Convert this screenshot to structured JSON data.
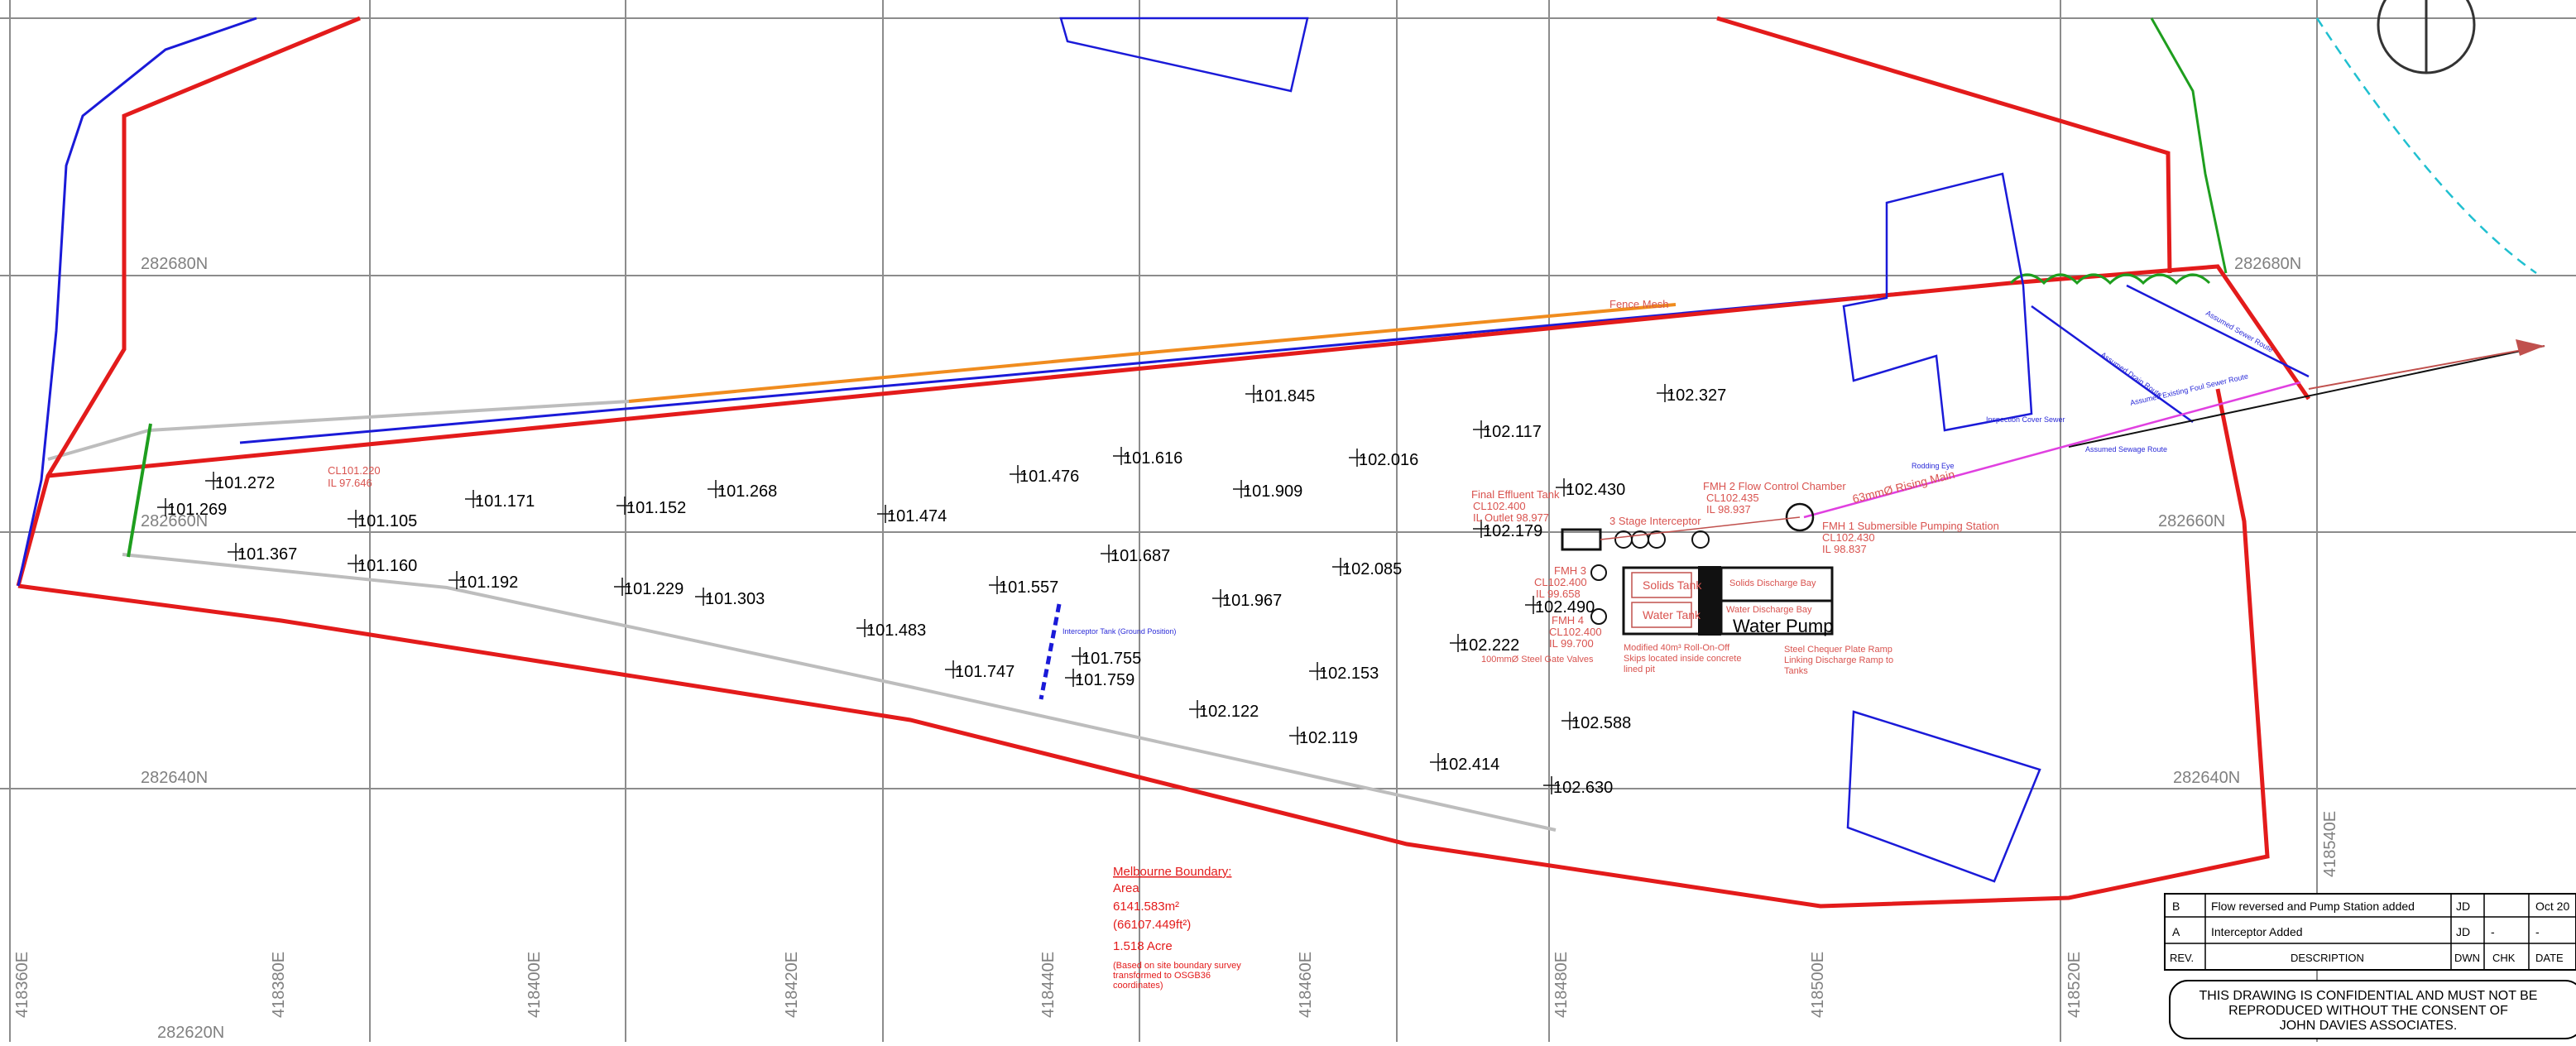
{
  "grid": {
    "northings": [
      "282680N",
      "282660N",
      "282640N",
      "282620N"
    ],
    "eastings": [
      "418360E",
      "418380E",
      "418400E",
      "418420E",
      "418440E",
      "418460E",
      "418480E",
      "418500E",
      "418520E",
      "418540E"
    ]
  },
  "levels": [
    "101.272",
    "101.269",
    "101.105",
    "101.171",
    "101.152",
    "101.268",
    "101.474",
    "101.476",
    "101.616",
    "101.845",
    "101.909",
    "102.016",
    "102.117",
    "102.327",
    "101.367",
    "101.160",
    "101.192",
    "101.229",
    "101.303",
    "101.557",
    "101.687",
    "101.967",
    "102.085",
    "102.179",
    "102.430",
    "101.483",
    "101.747",
    "101.755",
    "101.759",
    "102.122",
    "102.119",
    "102.153",
    "102.222",
    "102.414",
    "102.490",
    "102.588",
    "102.630"
  ],
  "annotations": {
    "cl_note_1": "CL101.220",
    "cl_note_2": "IL 97.646",
    "final_effluent": [
      "Final Effluent Tank",
      "CL102.400",
      "IL Outlet 98.977"
    ],
    "fmh2": [
      "FMH 2 Flow Control Chamber",
      "CL102.435",
      "IL 98.937"
    ],
    "interceptor": "3 Stage Interceptor",
    "fmh1": [
      "FMH 1 Submersible Pumping Station",
      "CL102.430",
      "IL 98.837"
    ],
    "fmh3": [
      "FMH 3",
      "CL102.400",
      "IL 99.658"
    ],
    "fmh4": [
      "FMH 4",
      "CL102.400",
      "IL 99.700"
    ],
    "rising_main": "63mmØ Rising Main",
    "solids_tank": "Solids Tank",
    "water_tank": "Water Tank",
    "solids_bay": "Solids Discharge Bay",
    "water_bay": "Water Discharge Bay",
    "water_pump": "Water Pump",
    "skips": [
      "Modified 40m³ Roll-On-Off",
      "Skips located inside concrete",
      "lined pit"
    ],
    "valves": "100mmØ Steel Gate Valves",
    "ramp": [
      "Steel Chequer Plate Ramp",
      "Linking Discharge Ramp to",
      "Tanks"
    ],
    "interceptor_tank": "Interceptor Tank (Ground Position)",
    "fence_mesh": "Fence Mesh",
    "route_1": "Assumed Existing Foul Sewer Route",
    "route_2": "Assumed Sewage Route",
    "route_3": "Assumed Drain Route",
    "route_4": "Assumed Sewer Route",
    "route_5": "Inspection Cover Sewer",
    "route_6": "Rodding Eye"
  },
  "boundary": {
    "title": "Melbourne Boundary:",
    "area_label": "Area",
    "area_m2": "6141.583m²",
    "area_ft2": "(66107.449ft²)",
    "acres": "1.518 Acre",
    "note": [
      "(Based on site boundary survey",
      "transformed to OSGB36",
      "coordinates)"
    ]
  },
  "revisions": {
    "rows": [
      {
        "rev": "B",
        "description": "Flow reversed and Pump Station added",
        "dwn": "JD",
        "chk": "",
        "date": "Oct 20"
      },
      {
        "rev": "A",
        "description": "Interceptor Added",
        "dwn": "JD",
        "chk": "-",
        "date": "-"
      }
    ],
    "headers": {
      "rev": "REV.",
      "description": "DESCRIPTION",
      "dwn": "DWN",
      "chk": "CHK",
      "date": "DATE"
    }
  },
  "confidential": [
    "THIS DRAWING IS CONFIDENTIAL AND MUST NOT BE",
    "REPRODUCED WITHOUT THE CONSENT OF",
    "JOHN DAVIES ASSOCIATES."
  ],
  "colors": {
    "grid": "#8c8c8c",
    "boundary": "#e31b1b",
    "sewer": "#1a1ad8",
    "fence": "#bdbdbd",
    "orange": "#f08c1e",
    "magenta": "#e040e0",
    "annotation": "#c0504d",
    "green": "#1e9e1e"
  }
}
